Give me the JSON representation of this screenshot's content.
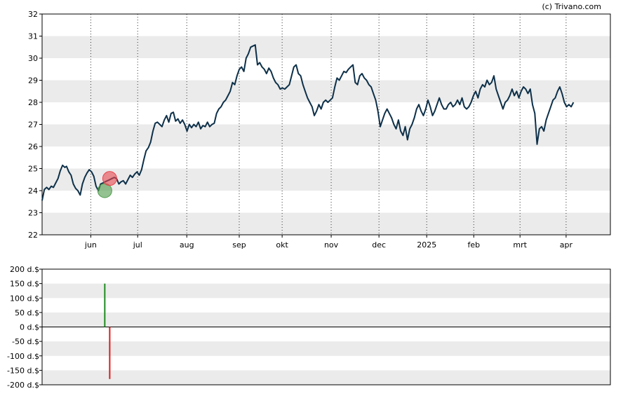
{
  "credit": "(c) Trivano.com",
  "chart_data": [
    {
      "type": "line",
      "title": "",
      "xlabel": "",
      "ylabel": "",
      "ylim": [
        22,
        32
      ],
      "y_ticks": [
        22,
        23,
        24,
        25,
        26,
        27,
        28,
        29,
        30,
        31,
        32
      ],
      "x_ticks": [
        {
          "label": "jun",
          "t": 0.0857
        },
        {
          "label": "jul",
          "t": 0.1682
        },
        {
          "label": "aug",
          "t": 0.2546
        },
        {
          "label": "sep",
          "t": 0.3469
        },
        {
          "label": "okt",
          "t": 0.4224
        },
        {
          "label": "nov",
          "t": 0.5087
        },
        {
          "label": "dec",
          "t": 0.5928
        },
        {
          "label": "2025",
          "t": 0.6768
        },
        {
          "label": "feb",
          "t": 0.7596
        },
        {
          "label": "mrt",
          "t": 0.841
        },
        {
          "label": "apr",
          "t": 0.9221
        }
      ],
      "grid": "alternating horizontal bands, dotted vertical lines at month ticks",
      "line_color": "#0d3049",
      "series": [
        {
          "points": [
            [
              0.0,
              23.55
            ],
            [
              0.004,
              24.05
            ],
            [
              0.008,
              24.15
            ],
            [
              0.012,
              24.05
            ],
            [
              0.016,
              24.2
            ],
            [
              0.02,
              24.15
            ],
            [
              0.024,
              24.35
            ],
            [
              0.028,
              24.55
            ],
            [
              0.032,
              24.9
            ],
            [
              0.036,
              25.15
            ],
            [
              0.04,
              25.05
            ],
            [
              0.043,
              25.1
            ],
            [
              0.047,
              24.85
            ],
            [
              0.051,
              24.7
            ],
            [
              0.055,
              24.3
            ],
            [
              0.059,
              24.1
            ],
            [
              0.063,
              24.0
            ],
            [
              0.067,
              23.8
            ],
            [
              0.071,
              24.3
            ],
            [
              0.075,
              24.6
            ],
            [
              0.079,
              24.8
            ],
            [
              0.083,
              24.95
            ],
            [
              0.087,
              24.85
            ],
            [
              0.091,
              24.65
            ],
            [
              0.095,
              24.2
            ],
            [
              0.099,
              24.0
            ],
            [
              0.103,
              24.3
            ],
            [
              0.107,
              24.35
            ],
            [
              0.111,
              24.4
            ],
            [
              0.115,
              24.45
            ],
            [
              0.119,
              24.5
            ],
            [
              0.123,
              24.55
            ],
            [
              0.127,
              24.6
            ],
            [
              0.131,
              24.55
            ],
            [
              0.135,
              24.3
            ],
            [
              0.139,
              24.4
            ],
            [
              0.143,
              24.45
            ],
            [
              0.147,
              24.3
            ],
            [
              0.151,
              24.5
            ],
            [
              0.155,
              24.7
            ],
            [
              0.159,
              24.6
            ],
            [
              0.163,
              24.75
            ],
            [
              0.167,
              24.85
            ],
            [
              0.171,
              24.7
            ],
            [
              0.175,
              24.95
            ],
            [
              0.179,
              25.4
            ],
            [
              0.183,
              25.8
            ],
            [
              0.187,
              25.95
            ],
            [
              0.191,
              26.2
            ],
            [
              0.195,
              26.7
            ],
            [
              0.199,
              27.05
            ],
            [
              0.203,
              27.1
            ],
            [
              0.207,
              27.0
            ],
            [
              0.211,
              26.9
            ],
            [
              0.215,
              27.2
            ],
            [
              0.219,
              27.4
            ],
            [
              0.223,
              27.1
            ],
            [
              0.227,
              27.5
            ],
            [
              0.231,
              27.55
            ],
            [
              0.235,
              27.15
            ],
            [
              0.239,
              27.25
            ],
            [
              0.243,
              27.05
            ],
            [
              0.247,
              27.2
            ],
            [
              0.251,
              27.0
            ],
            [
              0.255,
              26.7
            ],
            [
              0.259,
              27.0
            ],
            [
              0.263,
              26.85
            ],
            [
              0.267,
              27.0
            ],
            [
              0.271,
              26.9
            ],
            [
              0.275,
              27.1
            ],
            [
              0.279,
              26.8
            ],
            [
              0.283,
              26.95
            ],
            [
              0.287,
              26.9
            ],
            [
              0.291,
              27.1
            ],
            [
              0.295,
              26.9
            ],
            [
              0.299,
              27.0
            ],
            [
              0.303,
              27.05
            ],
            [
              0.307,
              27.5
            ],
            [
              0.311,
              27.7
            ],
            [
              0.315,
              27.8
            ],
            [
              0.319,
              28.0
            ],
            [
              0.323,
              28.1
            ],
            [
              0.327,
              28.3
            ],
            [
              0.331,
              28.5
            ],
            [
              0.335,
              28.9
            ],
            [
              0.339,
              28.8
            ],
            [
              0.343,
              29.2
            ],
            [
              0.347,
              29.5
            ],
            [
              0.351,
              29.6
            ],
            [
              0.355,
              29.4
            ],
            [
              0.359,
              30.0
            ],
            [
              0.363,
              30.2
            ],
            [
              0.367,
              30.5
            ],
            [
              0.371,
              30.55
            ],
            [
              0.375,
              30.6
            ],
            [
              0.379,
              29.7
            ],
            [
              0.383,
              29.8
            ],
            [
              0.387,
              29.6
            ],
            [
              0.391,
              29.5
            ],
            [
              0.395,
              29.3
            ],
            [
              0.399,
              29.55
            ],
            [
              0.403,
              29.4
            ],
            [
              0.407,
              29.1
            ],
            [
              0.411,
              28.9
            ],
            [
              0.415,
              28.8
            ],
            [
              0.419,
              28.6
            ],
            [
              0.423,
              28.65
            ],
            [
              0.427,
              28.6
            ],
            [
              0.431,
              28.7
            ],
            [
              0.435,
              28.8
            ],
            [
              0.439,
              29.2
            ],
            [
              0.443,
              29.6
            ],
            [
              0.447,
              29.7
            ],
            [
              0.451,
              29.3
            ],
            [
              0.455,
              29.2
            ],
            [
              0.459,
              28.8
            ],
            [
              0.463,
              28.5
            ],
            [
              0.467,
              28.2
            ],
            [
              0.471,
              28.0
            ],
            [
              0.475,
              27.8
            ],
            [
              0.479,
              27.4
            ],
            [
              0.483,
              27.6
            ],
            [
              0.487,
              27.9
            ],
            [
              0.491,
              27.7
            ],
            [
              0.495,
              28.0
            ],
            [
              0.499,
              28.1
            ],
            [
              0.503,
              28.0
            ],
            [
              0.507,
              28.1
            ],
            [
              0.511,
              28.2
            ],
            [
              0.515,
              28.7
            ],
            [
              0.519,
              29.1
            ],
            [
              0.523,
              29.0
            ],
            [
              0.527,
              29.2
            ],
            [
              0.531,
              29.4
            ],
            [
              0.535,
              29.35
            ],
            [
              0.539,
              29.5
            ],
            [
              0.543,
              29.6
            ],
            [
              0.547,
              29.7
            ],
            [
              0.551,
              28.9
            ],
            [
              0.555,
              28.8
            ],
            [
              0.559,
              29.2
            ],
            [
              0.563,
              29.3
            ],
            [
              0.567,
              29.1
            ],
            [
              0.571,
              29.0
            ],
            [
              0.575,
              28.8
            ],
            [
              0.579,
              28.7
            ],
            [
              0.583,
              28.4
            ],
            [
              0.587,
              28.1
            ],
            [
              0.591,
              27.6
            ],
            [
              0.595,
              26.9
            ],
            [
              0.599,
              27.2
            ],
            [
              0.603,
              27.5
            ],
            [
              0.607,
              27.7
            ],
            [
              0.611,
              27.5
            ],
            [
              0.615,
              27.3
            ],
            [
              0.619,
              27.0
            ],
            [
              0.623,
              26.8
            ],
            [
              0.627,
              27.2
            ],
            [
              0.631,
              26.7
            ],
            [
              0.635,
              26.5
            ],
            [
              0.639,
              26.9
            ],
            [
              0.643,
              26.3
            ],
            [
              0.647,
              26.8
            ],
            [
              0.651,
              27.0
            ],
            [
              0.655,
              27.3
            ],
            [
              0.659,
              27.7
            ],
            [
              0.663,
              27.9
            ],
            [
              0.667,
              27.6
            ],
            [
              0.671,
              27.4
            ],
            [
              0.675,
              27.7
            ],
            [
              0.679,
              28.1
            ],
            [
              0.683,
              27.8
            ],
            [
              0.687,
              27.4
            ],
            [
              0.691,
              27.6
            ],
            [
              0.695,
              27.9
            ],
            [
              0.699,
              28.2
            ],
            [
              0.703,
              27.9
            ],
            [
              0.707,
              27.7
            ],
            [
              0.711,
              27.7
            ],
            [
              0.715,
              27.9
            ],
            [
              0.719,
              28.0
            ],
            [
              0.723,
              27.8
            ],
            [
              0.727,
              27.9
            ],
            [
              0.731,
              28.1
            ],
            [
              0.735,
              27.9
            ],
            [
              0.739,
              28.2
            ],
            [
              0.743,
              27.8
            ],
            [
              0.747,
              27.7
            ],
            [
              0.751,
              27.8
            ],
            [
              0.755,
              28.0
            ],
            [
              0.759,
              28.3
            ],
            [
              0.763,
              28.5
            ],
            [
              0.767,
              28.2
            ],
            [
              0.771,
              28.6
            ],
            [
              0.775,
              28.8
            ],
            [
              0.779,
              28.7
            ],
            [
              0.783,
              29.0
            ],
            [
              0.787,
              28.8
            ],
            [
              0.791,
              28.9
            ],
            [
              0.795,
              29.2
            ],
            [
              0.799,
              28.6
            ],
            [
              0.803,
              28.3
            ],
            [
              0.807,
              28.0
            ],
            [
              0.811,
              27.7
            ],
            [
              0.815,
              28.0
            ],
            [
              0.819,
              28.1
            ],
            [
              0.823,
              28.3
            ],
            [
              0.827,
              28.6
            ],
            [
              0.831,
              28.3
            ],
            [
              0.835,
              28.5
            ],
            [
              0.839,
              28.2
            ],
            [
              0.843,
              28.5
            ],
            [
              0.847,
              28.7
            ],
            [
              0.851,
              28.6
            ],
            [
              0.855,
              28.4
            ],
            [
              0.859,
              28.6
            ],
            [
              0.863,
              27.9
            ],
            [
              0.867,
              27.5
            ],
            [
              0.871,
              26.1
            ],
            [
              0.875,
              26.8
            ],
            [
              0.879,
              26.9
            ],
            [
              0.883,
              26.7
            ],
            [
              0.887,
              27.2
            ],
            [
              0.891,
              27.5
            ],
            [
              0.895,
              27.8
            ],
            [
              0.899,
              28.1
            ],
            [
              0.903,
              28.2
            ],
            [
              0.907,
              28.5
            ],
            [
              0.911,
              28.7
            ],
            [
              0.915,
              28.4
            ],
            [
              0.919,
              28.0
            ],
            [
              0.923,
              27.8
            ],
            [
              0.927,
              27.9
            ],
            [
              0.931,
              27.8
            ],
            [
              0.935,
              28.0
            ]
          ]
        }
      ],
      "markers": [
        {
          "kind": "buy",
          "t": 0.1103,
          "value": 24.0,
          "color": "#4c9a48"
        },
        {
          "kind": "sell",
          "t": 0.119,
          "value": 24.55,
          "color": "#e8464f"
        }
      ]
    },
    {
      "type": "bar",
      "title": "",
      "xlabel": "",
      "ylabel": "",
      "ylim": [
        -200,
        200
      ],
      "y_ticks": [
        -200,
        -150,
        -100,
        -50,
        0,
        50,
        100,
        150,
        200
      ],
      "y_unit": " d.$",
      "grid": "alternating horizontal bands",
      "bars": [
        {
          "t": 0.1103,
          "value": 150,
          "color": "#1f8a1f"
        },
        {
          "t": 0.119,
          "value": -180,
          "color": "#e01a1a"
        }
      ]
    }
  ]
}
